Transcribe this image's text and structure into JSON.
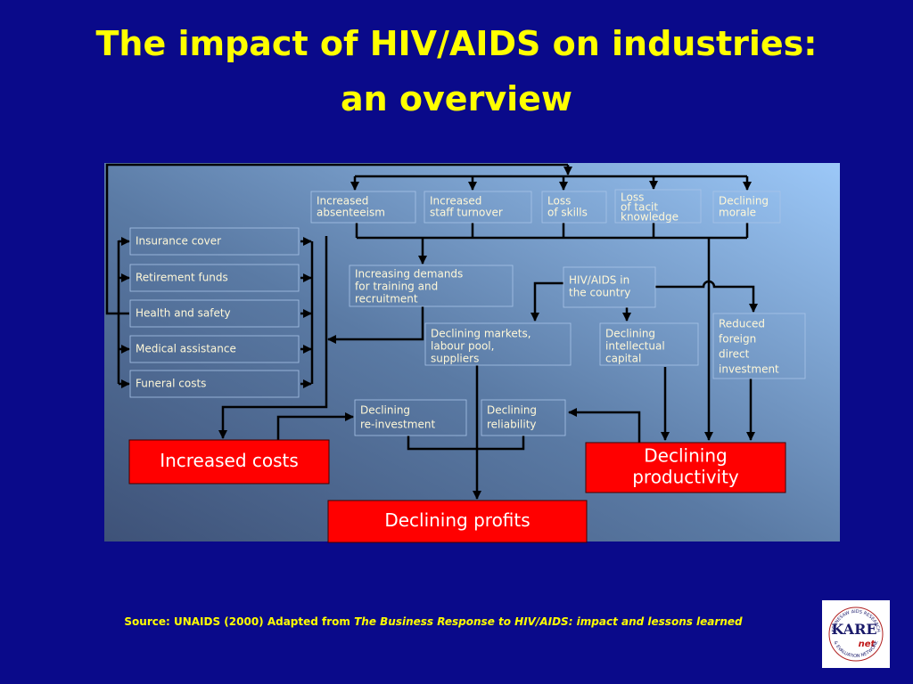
{
  "title": [
    "The impact of HIV/AIDS on industries:",
    "an overview"
  ],
  "nodes": [
    [
      "Increased",
      "absenteeism"
    ],
    [
      "Increased",
      "staff turnover"
    ],
    [
      "Loss",
      "of skills"
    ],
    [
      "Loss",
      "of tacit",
      "knowledge"
    ],
    [
      "Declining",
      "morale"
    ],
    [
      "Insurance cover"
    ],
    [
      "Retirement funds"
    ],
    [
      "Health and safety"
    ],
    [
      "Medical assistance"
    ],
    [
      "Funeral costs"
    ],
    [
      "Increasing demands",
      "for training and",
      "recruitment"
    ],
    [
      "HIV/AIDS in",
      "the country"
    ],
    [
      "Declining markets,",
      "labour pool,",
      "suppliers"
    ],
    [
      "Declining",
      "intellectual",
      "capital"
    ],
    [
      "Reduced",
      "foreign",
      "direct",
      "investment"
    ],
    [
      "Declining",
      "re-investment"
    ],
    [
      "Declining",
      "reliability"
    ]
  ],
  "outcomes": [
    [
      "Increased costs"
    ],
    [
      "Declining",
      "productivity"
    ],
    [
      "Declining profits"
    ]
  ],
  "source": {
    "prefix": "Source:  UNAIDS (2000)  Adapted from ",
    "work": "The Business Response to HIV/AIDS: impact and lessons learned"
  },
  "logo": {
    "name": "KARE",
    "suffix": "net",
    "ring_top": "KENNESAW AIDS RESEARCH",
    "ring_bottom": "& EVALUATION NETWORK"
  }
}
